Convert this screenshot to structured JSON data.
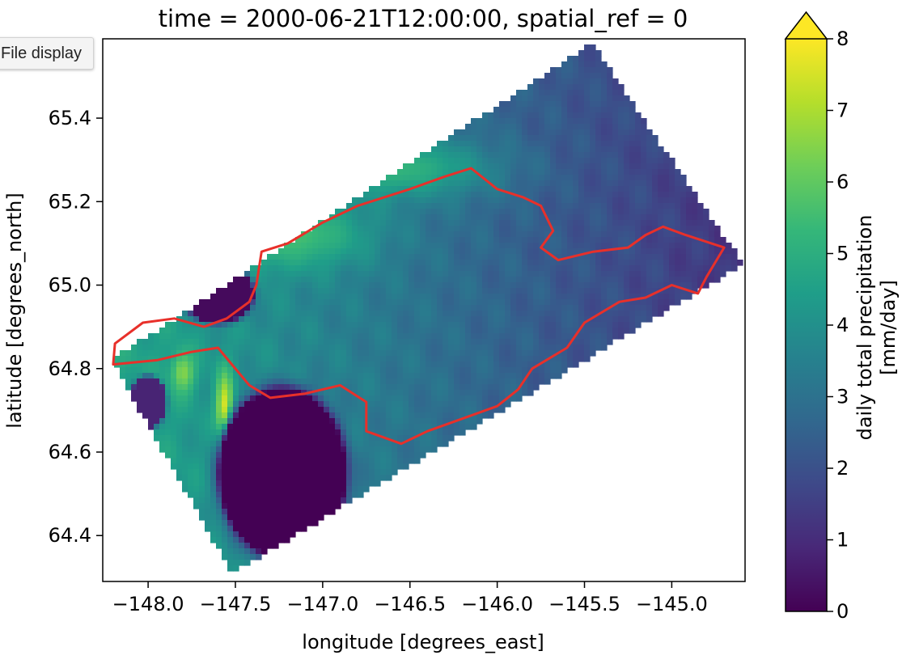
{
  "tooltip": {
    "text": "File display"
  },
  "colors": {
    "viridis": [
      "#440154",
      "#482878",
      "#3e4989",
      "#31688e",
      "#26828e",
      "#1f9e89",
      "#35b779",
      "#6ece58",
      "#b5de2b",
      "#fde725"
    ],
    "outline": "#e8302a",
    "axis": "#000000",
    "background": "#ffffff"
  },
  "chart_data": {
    "type": "heatmap",
    "title": "time = 2000-06-21T12:00:00, spatial_ref = 0",
    "xlabel": "longitude [degrees_east]",
    "ylabel": "latitude [degrees_north]",
    "xlim": [
      -148.26,
      -144.58
    ],
    "ylim": [
      64.29,
      65.59
    ],
    "xticks": [
      -148.0,
      -147.5,
      -147.0,
      -146.5,
      -146.0,
      -145.5,
      -145.0
    ],
    "xtick_labels": [
      "−148.0",
      "−147.5",
      "−147.0",
      "−146.5",
      "−146.0",
      "−145.5",
      "−145.0"
    ],
    "yticks": [
      64.4,
      64.6,
      64.8,
      65.0,
      65.2,
      65.4
    ],
    "ytick_labels": [
      "64.4",
      "64.6",
      "64.8",
      "65.0",
      "65.2",
      "65.4"
    ],
    "colorbar": {
      "label_line1": "daily total precipitation",
      "label_line2": "[mm/day]",
      "range": [
        0,
        8
      ],
      "extend": "max",
      "ticks": [
        0,
        1,
        2,
        3,
        4,
        5,
        6,
        7,
        8
      ],
      "tick_labels": [
        "0",
        "1",
        "2",
        "3",
        "4",
        "5",
        "6",
        "7",
        "8"
      ]
    },
    "field": {
      "domain_corners": [
        [
          -147.52,
          64.31
        ],
        [
          -148.21,
          64.82
        ],
        [
          -145.46,
          65.58
        ],
        [
          -144.59,
          65.05
        ]
      ],
      "dry_zones": [
        {
          "center": [
            -147.23,
            64.55
          ],
          "radius": [
            0.36,
            0.2
          ],
          "value": 0.0
        },
        {
          "center": [
            -147.6,
            64.98
          ],
          "radius": [
            0.2,
            0.07
          ],
          "value": 0.2
        },
        {
          "center": [
            -148.0,
            64.72
          ],
          "radius": [
            0.1,
            0.06
          ],
          "value": 0.8
        }
      ],
      "wet_zones": [
        {
          "center": [
            -147.56,
            64.7
          ],
          "radius": [
            0.05,
            0.09
          ],
          "value": 7.9
        },
        {
          "center": [
            -147.8,
            64.79
          ],
          "radius": [
            0.07,
            0.05
          ],
          "value": 6.5
        },
        {
          "center": [
            -147.2,
            65.12
          ],
          "radius": [
            0.45,
            0.08
          ],
          "value": 5.6
        },
        {
          "center": [
            -146.6,
            65.28
          ],
          "radius": [
            0.55,
            0.07
          ],
          "value": 5.2
        }
      ],
      "gradient": {
        "west": 4.8,
        "east": 1.2
      }
    },
    "basin_outline": [
      [
        -148.2,
        64.81
      ],
      [
        -148.19,
        64.86
      ],
      [
        -148.03,
        64.91
      ],
      [
        -147.85,
        64.92
      ],
      [
        -147.68,
        64.9
      ],
      [
        -147.55,
        64.92
      ],
      [
        -147.42,
        64.96
      ],
      [
        -147.38,
        65.0
      ],
      [
        -147.35,
        65.08
      ],
      [
        -147.2,
        65.1
      ],
      [
        -147.0,
        65.15
      ],
      [
        -146.8,
        65.19
      ],
      [
        -146.5,
        65.23
      ],
      [
        -146.3,
        65.26
      ],
      [
        -146.15,
        65.28
      ],
      [
        -146.0,
        65.23
      ],
      [
        -145.85,
        65.21
      ],
      [
        -145.75,
        65.19
      ],
      [
        -145.68,
        65.13
      ],
      [
        -145.75,
        65.09
      ],
      [
        -145.65,
        65.06
      ],
      [
        -145.45,
        65.08
      ],
      [
        -145.25,
        65.09
      ],
      [
        -145.15,
        65.12
      ],
      [
        -145.05,
        65.14
      ],
      [
        -144.92,
        65.12
      ],
      [
        -144.7,
        65.09
      ],
      [
        -144.8,
        65.02
      ],
      [
        -144.85,
        64.98
      ],
      [
        -145.0,
        65.0
      ],
      [
        -145.15,
        64.97
      ],
      [
        -145.3,
        64.96
      ],
      [
        -145.5,
        64.91
      ],
      [
        -145.6,
        64.85
      ],
      [
        -145.8,
        64.8
      ],
      [
        -145.88,
        64.75
      ],
      [
        -146.0,
        64.71
      ],
      [
        -146.2,
        64.68
      ],
      [
        -146.4,
        64.65
      ],
      [
        -146.55,
        64.62
      ],
      [
        -146.75,
        64.65
      ],
      [
        -146.75,
        64.72
      ],
      [
        -146.9,
        64.76
      ],
      [
        -147.1,
        64.74
      ],
      [
        -147.3,
        64.73
      ],
      [
        -147.42,
        64.76
      ],
      [
        -147.6,
        64.85
      ],
      [
        -147.75,
        64.84
      ],
      [
        -147.95,
        64.82
      ],
      [
        -148.2,
        64.81
      ]
    ]
  }
}
